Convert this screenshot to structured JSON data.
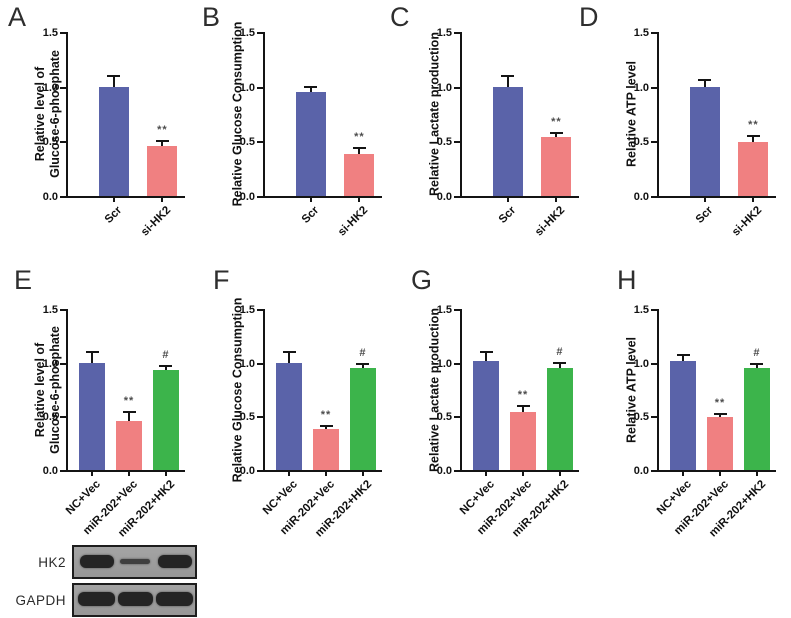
{
  "colors": {
    "blue": "#5a63a9",
    "pink": "#f08081",
    "green": "#3cb44b",
    "axis": "#141414",
    "sig_marker": "#4c4c4c",
    "blot_bg": "#9b9b9b",
    "band_strong": "#242424",
    "band_faint": "#3f3f3f"
  },
  "chart_data": [
    {
      "type": "bar",
      "panel": "A",
      "ylabel_lines": [
        "Relative level of",
        "Glucose-6-phosphate"
      ],
      "categories": [
        "Scr",
        "si-HK2"
      ],
      "values": [
        1.0,
        0.46
      ],
      "errors": [
        0.1,
        0.04
      ],
      "sig": [
        "",
        "**"
      ],
      "bar_colors": [
        "blue",
        "pink"
      ],
      "yticks": [
        0,
        0.5,
        1.0,
        1.5
      ],
      "ylim": [
        0,
        1.5
      ],
      "grid": false,
      "legend": "none"
    },
    {
      "type": "bar",
      "panel": "B",
      "ylabel_lines": [
        "Relative Glucose Consumption"
      ],
      "categories": [
        "Scr",
        "si-HK2"
      ],
      "values": [
        0.95,
        0.38
      ],
      "errors": [
        0.05,
        0.06
      ],
      "sig": [
        "",
        "**"
      ],
      "bar_colors": [
        "blue",
        "pink"
      ],
      "yticks": [
        0,
        0.5,
        1.0,
        1.5
      ],
      "ylim": [
        0,
        1.5
      ],
      "grid": false,
      "legend": "none"
    },
    {
      "type": "bar",
      "panel": "C",
      "ylabel_lines": [
        "Relative Lactate production"
      ],
      "categories": [
        "Scr",
        "si-HK2"
      ],
      "values": [
        1.0,
        0.54
      ],
      "errors": [
        0.1,
        0.04
      ],
      "sig": [
        "",
        "**"
      ],
      "bar_colors": [
        "blue",
        "pink"
      ],
      "yticks": [
        0,
        0.5,
        1.0,
        1.5
      ],
      "ylim": [
        0,
        1.5
      ],
      "grid": false,
      "legend": "none"
    },
    {
      "type": "bar",
      "panel": "D",
      "ylabel_lines": [
        "Relative ATP level"
      ],
      "categories": [
        "Scr",
        "si-HK2"
      ],
      "values": [
        1.0,
        0.49
      ],
      "errors": [
        0.06,
        0.06
      ],
      "sig": [
        "",
        "**"
      ],
      "bar_colors": [
        "blue",
        "pink"
      ],
      "yticks": [
        0,
        0.5,
        1.0,
        1.5
      ],
      "ylim": [
        0,
        1.5
      ],
      "grid": false,
      "legend": "none"
    },
    {
      "type": "bar",
      "panel": "E",
      "ylabel_lines": [
        "Relative level of",
        "Glucose-6-phosphate"
      ],
      "categories": [
        "NC+Vec",
        "miR-202+Vec",
        "miR-202+HK2"
      ],
      "values": [
        1.0,
        0.46,
        0.93
      ],
      "errors": [
        0.1,
        0.08,
        0.04
      ],
      "sig": [
        "",
        "**",
        "#"
      ],
      "bar_colors": [
        "blue",
        "pink",
        "green"
      ],
      "yticks": [
        0,
        0.5,
        1.0,
        1.5
      ],
      "ylim": [
        0,
        1.5
      ],
      "grid": false,
      "legend": "none"
    },
    {
      "type": "bar",
      "panel": "F",
      "ylabel_lines": [
        "Relative Glucose Consumption"
      ],
      "categories": [
        "NC+Vec",
        "miR-202+Vec",
        "miR-202+HK2"
      ],
      "values": [
        1.0,
        0.38,
        0.95
      ],
      "errors": [
        0.1,
        0.03,
        0.04
      ],
      "sig": [
        "",
        "**",
        "#"
      ],
      "bar_colors": [
        "blue",
        "pink",
        "green"
      ],
      "yticks": [
        0,
        0.5,
        1.0,
        1.5
      ],
      "ylim": [
        0,
        1.5
      ],
      "grid": false,
      "legend": "none"
    },
    {
      "type": "bar",
      "panel": "G",
      "ylabel_lines": [
        "Relative Lactate production"
      ],
      "categories": [
        "NC+Vec",
        "miR-202+Vec",
        "miR-202+HK2"
      ],
      "values": [
        1.02,
        0.54,
        0.95
      ],
      "errors": [
        0.08,
        0.06,
        0.05
      ],
      "sig": [
        "",
        "**",
        "#"
      ],
      "bar_colors": [
        "blue",
        "pink",
        "green"
      ],
      "yticks": [
        0,
        0.5,
        1.0,
        1.5
      ],
      "ylim": [
        0,
        1.5
      ],
      "grid": false,
      "legend": "none"
    },
    {
      "type": "bar",
      "panel": "H",
      "ylabel_lines": [
        "Relative ATP level"
      ],
      "categories": [
        "NC+Vec",
        "miR-202+Vec",
        "miR-202+HK2"
      ],
      "values": [
        1.02,
        0.49,
        0.95
      ],
      "errors": [
        0.05,
        0.03,
        0.04
      ],
      "sig": [
        "",
        "**",
        "#"
      ],
      "bar_colors": [
        "blue",
        "pink",
        "green"
      ],
      "yticks": [
        0,
        0.5,
        1.0,
        1.5
      ],
      "ylim": [
        0,
        1.5
      ],
      "grid": false,
      "legend": "none"
    }
  ],
  "western_blot": {
    "rows": [
      {
        "label": "HK2",
        "bands": [
          "strong",
          "faint",
          "strong"
        ]
      },
      {
        "label": "GAPDH",
        "bands": [
          "strong",
          "strong",
          "strong"
        ]
      }
    ]
  }
}
